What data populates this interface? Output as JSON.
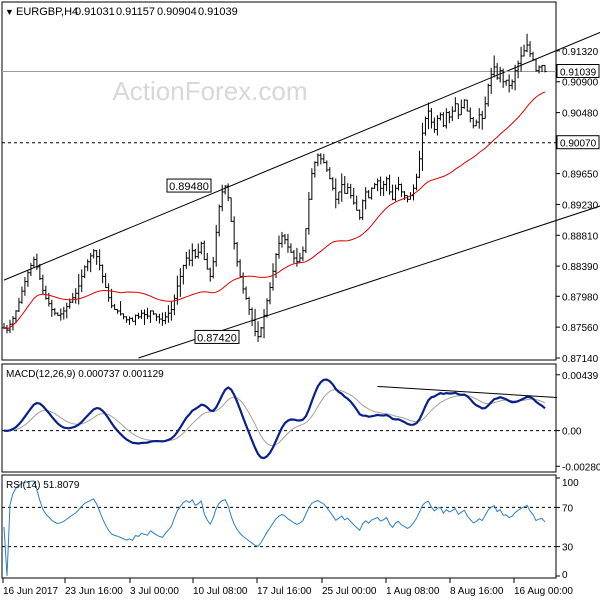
{
  "header": {
    "symbol": "EURGBP,H4",
    "open": "0.91031",
    "high": "0.91157",
    "low": "0.90904",
    "close": "0.91039",
    "marker_icon": "triangle-down-icon"
  },
  "watermark": "ActionForex.com",
  "colors": {
    "price": "#000000",
    "sma": "#e00000",
    "macd": "#0b1f8a",
    "signal": "#a0a0a0",
    "rsi": "#2b7fc8",
    "grid_dash": "#000000",
    "watermark": "#d8d8d8"
  },
  "chart_data": [
    {
      "type": "line",
      "name": "price",
      "x_labels": [
        "16 Jun 2017",
        "23 Jun 16:00",
        "3 Jul 00:00",
        "10 Jul 08:00",
        "17 Jul 16:00",
        "25 Jul 00:00",
        "1 Aug 08:00",
        "8 Aug 16:00",
        "16 Aug 00:00"
      ],
      "y_ticks": [
        "0.91320",
        "0.90900",
        "0.90480",
        "0.89650",
        "0.89230",
        "0.88810",
        "0.88390",
        "0.87980",
        "0.87560",
        "0.87140"
      ],
      "ylim": [
        0.8714,
        0.9174
      ],
      "current_price": "0.91039",
      "level_line": "0.90070",
      "annotations": [
        {
          "text": "0.89480",
          "value": 0.8948
        },
        {
          "text": "0.87420",
          "value": 0.8742
        }
      ],
      "channel": {
        "upper": [
          [
            0,
            0.882
          ],
          [
            210,
            0.9175
          ]
        ],
        "lower": [
          [
            45,
            0.8714
          ],
          [
            210,
            0.8935
          ]
        ]
      },
      "close": [
        0.8755,
        0.8752,
        0.876,
        0.8768,
        0.8778,
        0.879,
        0.8805,
        0.8818,
        0.883,
        0.884,
        0.8848,
        0.8838,
        0.8822,
        0.8806,
        0.8795,
        0.8788,
        0.878,
        0.8775,
        0.8772,
        0.8774,
        0.8778,
        0.8784,
        0.879,
        0.8796,
        0.8802,
        0.8812,
        0.8825,
        0.8838,
        0.8845,
        0.8853,
        0.886,
        0.8852,
        0.884,
        0.8825,
        0.881,
        0.8796,
        0.8785,
        0.878,
        0.8778,
        0.8774,
        0.877,
        0.8766,
        0.8768,
        0.8764,
        0.8772,
        0.877,
        0.8775,
        0.8773,
        0.8771,
        0.8778,
        0.8774,
        0.877,
        0.8767,
        0.8765,
        0.877,
        0.8775,
        0.878,
        0.8795,
        0.8812,
        0.8825,
        0.884,
        0.885,
        0.8847,
        0.886,
        0.8852,
        0.8858,
        0.887,
        0.8848,
        0.8835,
        0.8825,
        0.8845,
        0.8885,
        0.892,
        0.894,
        0.8948,
        0.8932,
        0.89,
        0.887,
        0.8845,
        0.8825,
        0.8808,
        0.8795,
        0.878,
        0.8765,
        0.875,
        0.8743,
        0.8755,
        0.8772,
        0.8792,
        0.881,
        0.8832,
        0.8855,
        0.887,
        0.888,
        0.8875,
        0.8865,
        0.8858,
        0.885,
        0.8845,
        0.885,
        0.886,
        0.889,
        0.893,
        0.8965,
        0.898,
        0.899,
        0.8985,
        0.898,
        0.897,
        0.8958,
        0.8945,
        0.893,
        0.894,
        0.895,
        0.8938,
        0.8946,
        0.8935,
        0.8925,
        0.8915,
        0.8905,
        0.8928,
        0.894,
        0.8932,
        0.8945,
        0.895,
        0.8955,
        0.8945,
        0.895,
        0.8958,
        0.894,
        0.893,
        0.8945,
        0.895,
        0.894,
        0.8935,
        0.893,
        0.8935,
        0.8945,
        0.896,
        0.8985,
        0.902,
        0.904,
        0.905,
        0.9035,
        0.9025,
        0.904,
        0.9045,
        0.903,
        0.9048,
        0.9042,
        0.905,
        0.906,
        0.9045,
        0.9055,
        0.9065,
        0.905,
        0.904,
        0.903,
        0.9035,
        0.9045,
        0.904,
        0.906,
        0.9085,
        0.91,
        0.911,
        0.9095,
        0.9105,
        0.909,
        0.9092,
        0.9085,
        0.909,
        0.9105,
        0.9115,
        0.9125,
        0.9132,
        0.914,
        0.9128,
        0.912,
        0.9105,
        0.911,
        0.9112,
        0.9104
      ],
      "sma_period": 40
    },
    {
      "type": "line",
      "name": "MACD(12,26,9)",
      "label": "MACD(12,26,9) 0.000737 0.001129",
      "y_ticks": [
        "0.00439",
        "0.00",
        "-0.002809"
      ],
      "ylim": [
        -0.0031,
        0.005
      ],
      "zero_line": 0,
      "trendline": [
        [
          125,
          0.00347
        ],
        [
          185,
          0.0026
        ]
      ]
    },
    {
      "type": "line",
      "name": "RSI(14)",
      "label": "RSI(14) 51.8079",
      "y_ticks": [
        "100",
        "70",
        "30",
        "0"
      ],
      "ylim": [
        0,
        100
      ],
      "levels": [
        70,
        30
      ]
    }
  ]
}
